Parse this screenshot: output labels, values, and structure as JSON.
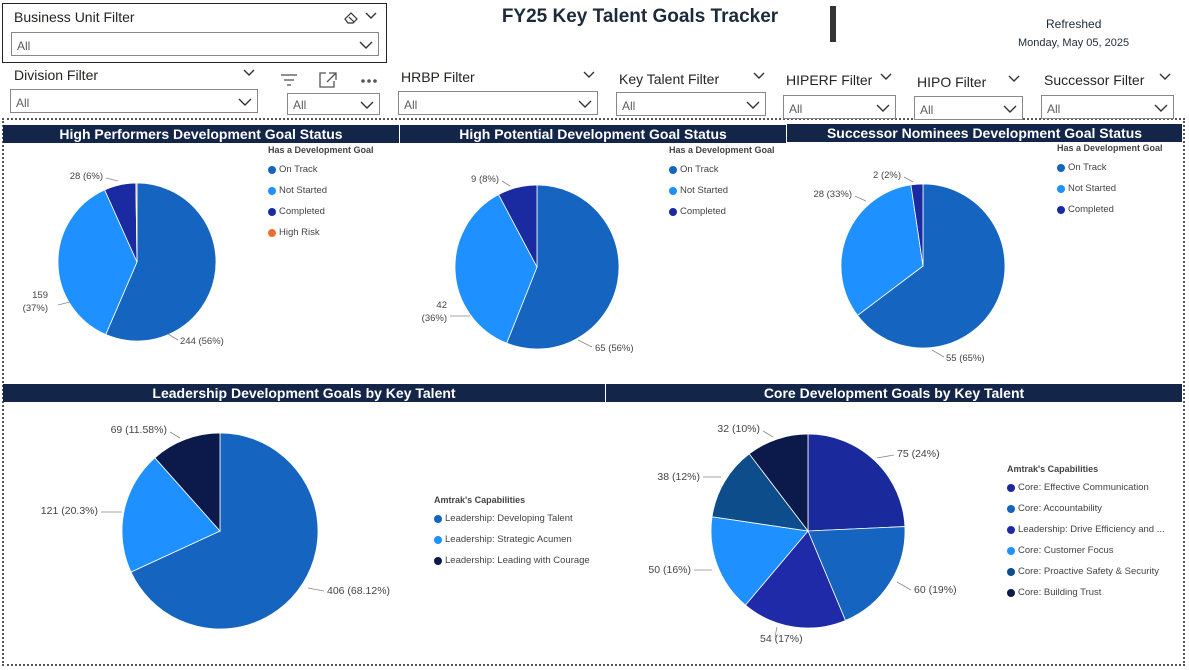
{
  "page": {
    "title": "FY25 Key Talent Goals Tracker",
    "refreshed_label": "Refreshed",
    "refreshed_date": "Monday, May 05, 2025"
  },
  "filters": {
    "business_unit": {
      "label": "Business Unit Filter",
      "value": "All"
    },
    "division": {
      "label": "Division Filter",
      "value": "All"
    },
    "unnamed": {
      "value": "All"
    },
    "hrbp": {
      "label": "HRBP Filter",
      "value": "All"
    },
    "key_talent": {
      "label": "Key Talent Filter",
      "value": "All"
    },
    "hiperf": {
      "label": "HIPERF Filter",
      "value": "All"
    },
    "hipo": {
      "label": "HIPO Filter",
      "value": "All"
    },
    "successor": {
      "label": "Successor Filter",
      "value": "All"
    }
  },
  "icons": {
    "eraser": "eraser-icon",
    "chevron": "chevron-down-icon",
    "filter": "filter-icon",
    "focus": "focus-mode-icon",
    "more": "more-options-icon"
  },
  "colors": {
    "header_bg": "#13264a",
    "on_track": "#1565c0",
    "not_started": "#1e90ff",
    "completed": "#1a2aa0",
    "high_risk": "#e8702a",
    "core_effective_communication": "#1a2a9c",
    "core_accountability": "#1565c0",
    "leadership_drive_efficiency": "#1f2aa8",
    "core_customer_focus": "#1e90ff",
    "core_proactive_safety": "#0d4d8c",
    "core_building_trust": "#0b1a4a",
    "dev_talent": "#1565c0",
    "strategic_acumen": "#1e90ff",
    "leading_courage": "#0b1a4a"
  },
  "chart_data": [
    {
      "type": "pie",
      "title": "High Performers Development Goal Status",
      "legend_title": "Has a Development Goal",
      "legend_position": "right",
      "slices": [
        {
          "name": "On Track",
          "value": 244,
          "label": "244 (56%)"
        },
        {
          "name": "Not Started",
          "value": 159,
          "label_line1": "159",
          "label_line2": "(37%)"
        },
        {
          "name": "Completed",
          "value": 28,
          "label": "28 (6%)"
        },
        {
          "name": "High Risk",
          "value": 1
        }
      ]
    },
    {
      "type": "pie",
      "title": "High Potential Development Goal Status",
      "legend_title": "Has a Development Goal",
      "legend_position": "right",
      "slices": [
        {
          "name": "On Track",
          "value": 65,
          "label": "65 (56%)"
        },
        {
          "name": "Not Started",
          "value": 42,
          "label_line1": "42",
          "label_line2": "(36%)"
        },
        {
          "name": "Completed",
          "value": 9,
          "label": "9 (8%)"
        }
      ]
    },
    {
      "type": "pie",
      "title": "Successor Nominees Development Goal Status",
      "legend_title": "Has a Development Goal",
      "legend_position": "right",
      "slices": [
        {
          "name": "On Track",
          "value": 55,
          "label": "55 (65%)"
        },
        {
          "name": "Not Started",
          "value": 28,
          "label": "28 (33%)"
        },
        {
          "name": "Completed",
          "value": 2,
          "label": "2 (2%)"
        }
      ]
    },
    {
      "type": "pie",
      "title": "Leadership Development Goals by Key Talent",
      "legend_title": "Amtrak's Capabilities",
      "legend_position": "right",
      "slices": [
        {
          "name": "Leadership: Developing Talent",
          "value": 406,
          "label": "406 (68.12%)"
        },
        {
          "name": "Leadership: Strategic Acumen",
          "value": 121,
          "label": "121 (20.3%)"
        },
        {
          "name": "Leadership: Leading with Courage",
          "value": 69,
          "label": "69 (11.58%)"
        }
      ]
    },
    {
      "type": "pie",
      "title": "Core Development Goals by Key Talent",
      "legend_title": "Amtrak's Capabilities",
      "legend_position": "right",
      "slices": [
        {
          "name": "Core: Effective Communication",
          "value": 75,
          "label": "75 (24%)"
        },
        {
          "name": "Core: Accountability",
          "value": 60,
          "label": "60 (19%)"
        },
        {
          "name": "Leadership: Drive Efficiency and ...",
          "value": 54,
          "label": "54 (17%)"
        },
        {
          "name": "Core: Customer Focus",
          "value": 50,
          "label": "50 (16%)"
        },
        {
          "name": "Core: Proactive Safety & Security",
          "value": 38,
          "label": "38 (12%)"
        },
        {
          "name": "Core: Building Trust",
          "value": 32,
          "label": "32 (10%)"
        }
      ]
    }
  ]
}
